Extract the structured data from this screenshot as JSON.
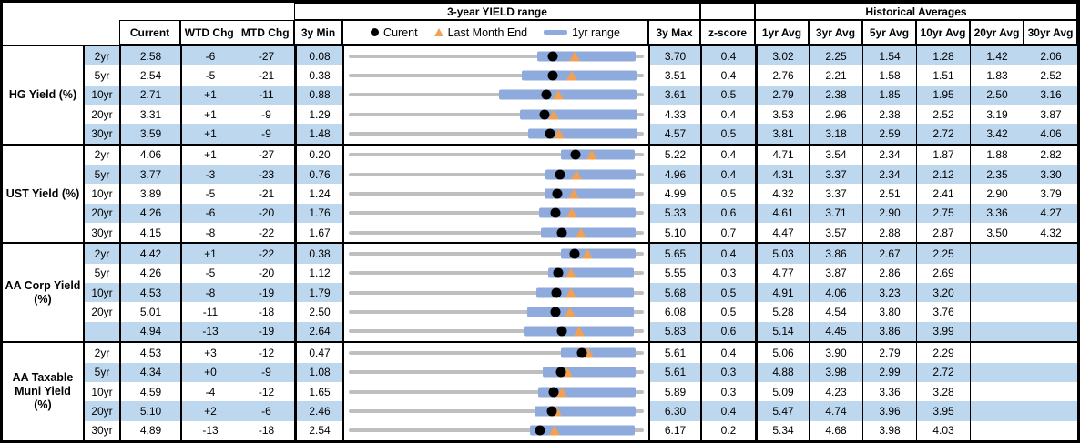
{
  "colors": {
    "stripe": "#bdd7ee",
    "bar": "#8faadc",
    "tri": "#f0a153",
    "dot": "#000000",
    "track": "#bfbfbf"
  },
  "header": {
    "top": {
      "yield_range_title": "3-year YIELD range",
      "historical_title": "Historical Averages"
    },
    "cols": {
      "current": "Current",
      "wtd": "WTD Chg",
      "mtd": "MTD Chg",
      "min": "3y Min",
      "max": "3y Max",
      "z": "z-score",
      "avgs": [
        "1yr Avg",
        "3yr Avg",
        "5yr Avg",
        "10yr Avg",
        "20yr Avg",
        "30yr Avg"
      ]
    },
    "legend": {
      "current": "Curent",
      "last_month": "Last Month End",
      "range": "1yr range"
    }
  },
  "chart_data": {
    "type": "table+range-dot-plot",
    "note": "Each row: gray track spans 3y Min..3y Max, blue bar = 1yr range (estimated), black dot = Current, orange triangle = Last Month End (Current - MTD chg).",
    "sections": [
      {
        "label": "HG Yield (%)",
        "rows": [
          {
            "tenor": "2yr",
            "current": "2.58",
            "wtd": "-6",
            "mtd": "-27",
            "min3y": "0.08",
            "max3y": "3.70",
            "z": "0.4",
            "lme": 2.85,
            "bar1yr": [
              2.39,
              3.6
            ],
            "avgs": [
              "3.02",
              "2.25",
              "1.54",
              "1.28",
              "1.42",
              "2.06"
            ]
          },
          {
            "tenor": "5yr",
            "current": "2.54",
            "wtd": "-5",
            "mtd": "-21",
            "min3y": "0.38",
            "max3y": "3.51",
            "z": "0.4",
            "lme": 2.75,
            "bar1yr": [
              2.22,
              3.43
            ],
            "avgs": [
              "2.76",
              "2.21",
              "1.58",
              "1.51",
              "1.83",
              "2.52"
            ]
          },
          {
            "tenor": "10yr",
            "current": "2.71",
            "wtd": "+1",
            "mtd": "-11",
            "min3y": "0.88",
            "max3y": "3.61",
            "z": "0.5",
            "lme": 2.82,
            "bar1yr": [
              2.27,
              3.54
            ],
            "avgs": [
              "2.79",
              "2.38",
              "1.85",
              "1.95",
              "2.50",
              "3.16"
            ]
          },
          {
            "tenor": "20yr",
            "current": "3.31",
            "wtd": "+1",
            "mtd": "-9",
            "min3y": "1.29",
            "max3y": "4.33",
            "z": "0.4",
            "lme": 3.4,
            "bar1yr": [
              3.05,
              4.26
            ],
            "avgs": [
              "3.53",
              "2.96",
              "2.38",
              "2.52",
              "3.19",
              "3.87"
            ]
          },
          {
            "tenor": "30yr",
            "current": "3.59",
            "wtd": "+1",
            "mtd": "-9",
            "min3y": "1.48",
            "max3y": "4.57",
            "z": "0.5",
            "lme": 3.68,
            "bar1yr": [
              3.36,
              4.5
            ],
            "avgs": [
              "3.81",
              "3.18",
              "2.59",
              "2.72",
              "3.42",
              "4.06"
            ]
          }
        ]
      },
      {
        "label": "UST Yield (%)",
        "rows": [
          {
            "tenor": "2yr",
            "current": "4.06",
            "wtd": "+1",
            "mtd": "-27",
            "min3y": "0.20",
            "max3y": "5.22",
            "z": "0.4",
            "lme": 4.33,
            "bar1yr": [
              3.81,
              5.07
            ],
            "avgs": [
              "4.71",
              "3.54",
              "2.34",
              "1.87",
              "1.88",
              "2.82"
            ]
          },
          {
            "tenor": "5yr",
            "current": "3.77",
            "wtd": "-3",
            "mtd": "-23",
            "min3y": "0.76",
            "max3y": "4.96",
            "z": "0.4",
            "lme": 4.0,
            "bar1yr": [
              3.56,
              4.84
            ],
            "avgs": [
              "4.31",
              "3.37",
              "2.34",
              "2.12",
              "2.35",
              "3.30"
            ]
          },
          {
            "tenor": "10yr",
            "current": "3.89",
            "wtd": "-5",
            "mtd": "-21",
            "min3y": "1.24",
            "max3y": "4.99",
            "z": "0.5",
            "lme": 4.1,
            "bar1yr": [
              3.73,
              4.88
            ],
            "avgs": [
              "4.32",
              "3.37",
              "2.51",
              "2.41",
              "2.90",
              "3.79"
            ]
          },
          {
            "tenor": "20yr",
            "current": "4.26",
            "wtd": "-6",
            "mtd": "-20",
            "min3y": "1.76",
            "max3y": "5.33",
            "z": "0.6",
            "lme": 4.46,
            "bar1yr": [
              4.06,
              5.23
            ],
            "avgs": [
              "4.61",
              "3.71",
              "2.90",
              "2.75",
              "3.36",
              "4.27"
            ]
          },
          {
            "tenor": "30yr",
            "current": "4.15",
            "wtd": "-8",
            "mtd": "-22",
            "min3y": "1.67",
            "max3y": "5.10",
            "z": "0.7",
            "lme": 4.37,
            "bar1yr": [
              3.9,
              5.0
            ],
            "avgs": [
              "4.47",
              "3.57",
              "2.88",
              "2.87",
              "3.50",
              "4.32"
            ]
          }
        ]
      },
      {
        "label": "AA Corp Yield\n(%)",
        "rows": [
          {
            "tenor": "2yr",
            "current": "4.42",
            "wtd": "+1",
            "mtd": "-22",
            "min3y": "0.38",
            "max3y": "5.65",
            "z": "0.4",
            "lme": 4.64,
            "bar1yr": [
              4.17,
              5.5
            ],
            "avgs": [
              "5.03",
              "3.86",
              "2.67",
              "2.25",
              "",
              ""
            ]
          },
          {
            "tenor": "5yr",
            "current": "4.26",
            "wtd": "-5",
            "mtd": "-20",
            "min3y": "1.12",
            "max3y": "5.55",
            "z": "0.3",
            "lme": 4.46,
            "bar1yr": [
              4.11,
              5.4
            ],
            "avgs": [
              "4.77",
              "3.87",
              "2.86",
              "2.69",
              "",
              ""
            ]
          },
          {
            "tenor": "10yr",
            "current": "4.53",
            "wtd": "-8",
            "mtd": "-19",
            "min3y": "1.79",
            "max3y": "5.68",
            "z": "0.5",
            "lme": 4.72,
            "bar1yr": [
              4.26,
              5.55
            ],
            "avgs": [
              "4.91",
              "4.06",
              "3.23",
              "3.20",
              "",
              ""
            ]
          },
          {
            "tenor": "20yr",
            "current": "5.01",
            "wtd": "-11",
            "mtd": "-18",
            "min3y": "2.50",
            "max3y": "6.08",
            "z": "0.5",
            "lme": 5.19,
            "bar1yr": [
              4.67,
              5.96
            ],
            "avgs": [
              "5.28",
              "4.54",
              "3.80",
              "3.76",
              "",
              ""
            ]
          },
          {
            "tenor": "",
            "current": "4.94",
            "wtd": "-13",
            "mtd": "-19",
            "min3y": "2.64",
            "max3y": "5.83",
            "z": "0.6",
            "lme": 5.13,
            "bar1yr": [
              4.53,
              5.72
            ],
            "avgs": [
              "5.14",
              "4.45",
              "3.86",
              "3.99",
              "",
              ""
            ]
          }
        ]
      },
      {
        "label": "AA Taxable\nMuni Yield\n(%)",
        "rows": [
          {
            "tenor": "2yr",
            "current": "4.53",
            "wtd": "+3",
            "mtd": "-12",
            "min3y": "0.47",
            "max3y": "5.61",
            "z": "0.4",
            "lme": 4.65,
            "bar1yr": [
              4.17,
              5.46
            ],
            "avgs": [
              "5.06",
              "3.90",
              "2.79",
              "2.29",
              "",
              ""
            ]
          },
          {
            "tenor": "5yr",
            "current": "4.34",
            "wtd": "+0",
            "mtd": "-9",
            "min3y": "1.08",
            "max3y": "5.61",
            "z": "0.3",
            "lme": 4.43,
            "bar1yr": [
              4.06,
              5.48
            ],
            "avgs": [
              "4.88",
              "3.98",
              "2.99",
              "2.72",
              "",
              ""
            ]
          },
          {
            "tenor": "10yr",
            "current": "4.59",
            "wtd": "-4",
            "mtd": "-12",
            "min3y": "1.65",
            "max3y": "5.89",
            "z": "0.3",
            "lme": 4.71,
            "bar1yr": [
              4.37,
              5.77
            ],
            "avgs": [
              "5.09",
              "4.23",
              "3.36",
              "3.28",
              "",
              ""
            ]
          },
          {
            "tenor": "20yr",
            "current": "5.10",
            "wtd": "+2",
            "mtd": "-6",
            "min3y": "2.46",
            "max3y": "6.30",
            "z": "0.4",
            "lme": 5.16,
            "bar1yr": [
              4.88,
              6.19
            ],
            "avgs": [
              "5.47",
              "4.74",
              "3.96",
              "3.95",
              "",
              ""
            ]
          },
          {
            "tenor": "30yr",
            "current": "4.89",
            "wtd": "-13",
            "mtd": "-18",
            "min3y": "2.54",
            "max3y": "6.17",
            "z": "0.2",
            "lme": 5.07,
            "bar1yr": [
              4.77,
              6.06
            ],
            "avgs": [
              "5.34",
              "4.68",
              "3.98",
              "4.03",
              "",
              ""
            ]
          }
        ]
      }
    ]
  }
}
